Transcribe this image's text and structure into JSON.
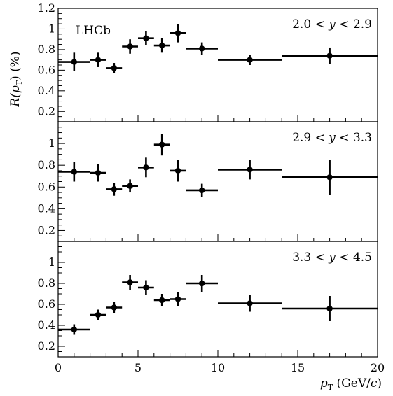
{
  "chart_data": {
    "type": "scatter",
    "experiment_label": "LHCb",
    "xlabel": {
      "main": "p",
      "sub": "T",
      "unit": " (GeV/",
      "unit_italic": "c",
      "unit_close": ")"
    },
    "ylabel": {
      "main": "R(p",
      "sub": "T",
      "close": ") (%)"
    },
    "xlim": [
      0,
      20
    ],
    "ylim": [
      0.1,
      1.2
    ],
    "x_ticks": [
      "0",
      "5",
      "10",
      "15",
      "20"
    ],
    "y_ticks_top": [
      "0.2",
      "0.4",
      "0.6",
      "0.8",
      "1",
      "1.2"
    ],
    "y_ticks_lower": [
      "0.2",
      "0.4",
      "0.6",
      "0.8",
      "1"
    ],
    "y_tick_values_top": [
      0.2,
      0.4,
      0.6,
      0.8,
      1.0,
      1.2
    ],
    "y_tick_values_lower": [
      0.2,
      0.4,
      0.6,
      0.8,
      1.0
    ],
    "panels": [
      {
        "label": "2.0 < y < 2.9",
        "points": [
          {
            "x": 1.0,
            "xlo": 0,
            "xhi": 2,
            "y": 0.68,
            "err": 0.09
          },
          {
            "x": 2.5,
            "xlo": 2,
            "xhi": 3,
            "y": 0.7,
            "err": 0.07
          },
          {
            "x": 3.5,
            "xlo": 3,
            "xhi": 4,
            "y": 0.62,
            "err": 0.05
          },
          {
            "x": 4.5,
            "xlo": 4,
            "xhi": 5,
            "y": 0.83,
            "err": 0.07
          },
          {
            "x": 5.5,
            "xlo": 5,
            "xhi": 6,
            "y": 0.91,
            "err": 0.07
          },
          {
            "x": 6.5,
            "xlo": 6,
            "xhi": 7,
            "y": 0.84,
            "err": 0.07
          },
          {
            "x": 7.5,
            "xlo": 7,
            "xhi": 8,
            "y": 0.96,
            "err": 0.09
          },
          {
            "x": 9.0,
            "xlo": 8,
            "xhi": 10,
            "y": 0.81,
            "err": 0.06
          },
          {
            "x": 12.0,
            "xlo": 10,
            "xhi": 14,
            "y": 0.7,
            "err": 0.05
          },
          {
            "x": 17.0,
            "xlo": 14,
            "xhi": 20,
            "y": 0.74,
            "err": 0.08
          }
        ]
      },
      {
        "label": "2.9 < y < 3.3",
        "points": [
          {
            "x": 1.0,
            "xlo": 0,
            "xhi": 2,
            "y": 0.74,
            "err": 0.09
          },
          {
            "x": 2.5,
            "xlo": 2,
            "xhi": 3,
            "y": 0.73,
            "err": 0.08
          },
          {
            "x": 3.5,
            "xlo": 3,
            "xhi": 4,
            "y": 0.58,
            "err": 0.06
          },
          {
            "x": 4.5,
            "xlo": 4,
            "xhi": 5,
            "y": 0.61,
            "err": 0.06
          },
          {
            "x": 5.5,
            "xlo": 5,
            "xhi": 6,
            "y": 0.78,
            "err": 0.09
          },
          {
            "x": 6.5,
            "xlo": 6,
            "xhi": 7,
            "y": 0.99,
            "err": 0.1
          },
          {
            "x": 7.5,
            "xlo": 7,
            "xhi": 8,
            "y": 0.75,
            "err": 0.1
          },
          {
            "x": 9.0,
            "xlo": 8,
            "xhi": 10,
            "y": 0.57,
            "err": 0.06
          },
          {
            "x": 12.0,
            "xlo": 10,
            "xhi": 14,
            "y": 0.76,
            "err": 0.09
          },
          {
            "x": 17.0,
            "xlo": 14,
            "xhi": 20,
            "y": 0.69,
            "err": 0.16
          }
        ]
      },
      {
        "label": "3.3 < y < 4.5",
        "points": [
          {
            "x": 1.0,
            "xlo": 0,
            "xhi": 2,
            "y": 0.36,
            "err": 0.05
          },
          {
            "x": 2.5,
            "xlo": 2,
            "xhi": 3,
            "y": 0.5,
            "err": 0.05
          },
          {
            "x": 3.5,
            "xlo": 3,
            "xhi": 4,
            "y": 0.57,
            "err": 0.05
          },
          {
            "x": 4.5,
            "xlo": 4,
            "xhi": 5,
            "y": 0.81,
            "err": 0.07
          },
          {
            "x": 5.5,
            "xlo": 5,
            "xhi": 6,
            "y": 0.76,
            "err": 0.07
          },
          {
            "x": 6.5,
            "xlo": 6,
            "xhi": 7,
            "y": 0.64,
            "err": 0.06
          },
          {
            "x": 7.5,
            "xlo": 7,
            "xhi": 8,
            "y": 0.65,
            "err": 0.07
          },
          {
            "x": 9.0,
            "xlo": 8,
            "xhi": 10,
            "y": 0.8,
            "err": 0.08
          },
          {
            "x": 12.0,
            "xlo": 10,
            "xhi": 14,
            "y": 0.61,
            "err": 0.08
          },
          {
            "x": 17.0,
            "xlo": 14,
            "xhi": 20,
            "y": 0.56,
            "err": 0.12
          }
        ]
      }
    ],
    "grid": false,
    "legend": "none"
  }
}
